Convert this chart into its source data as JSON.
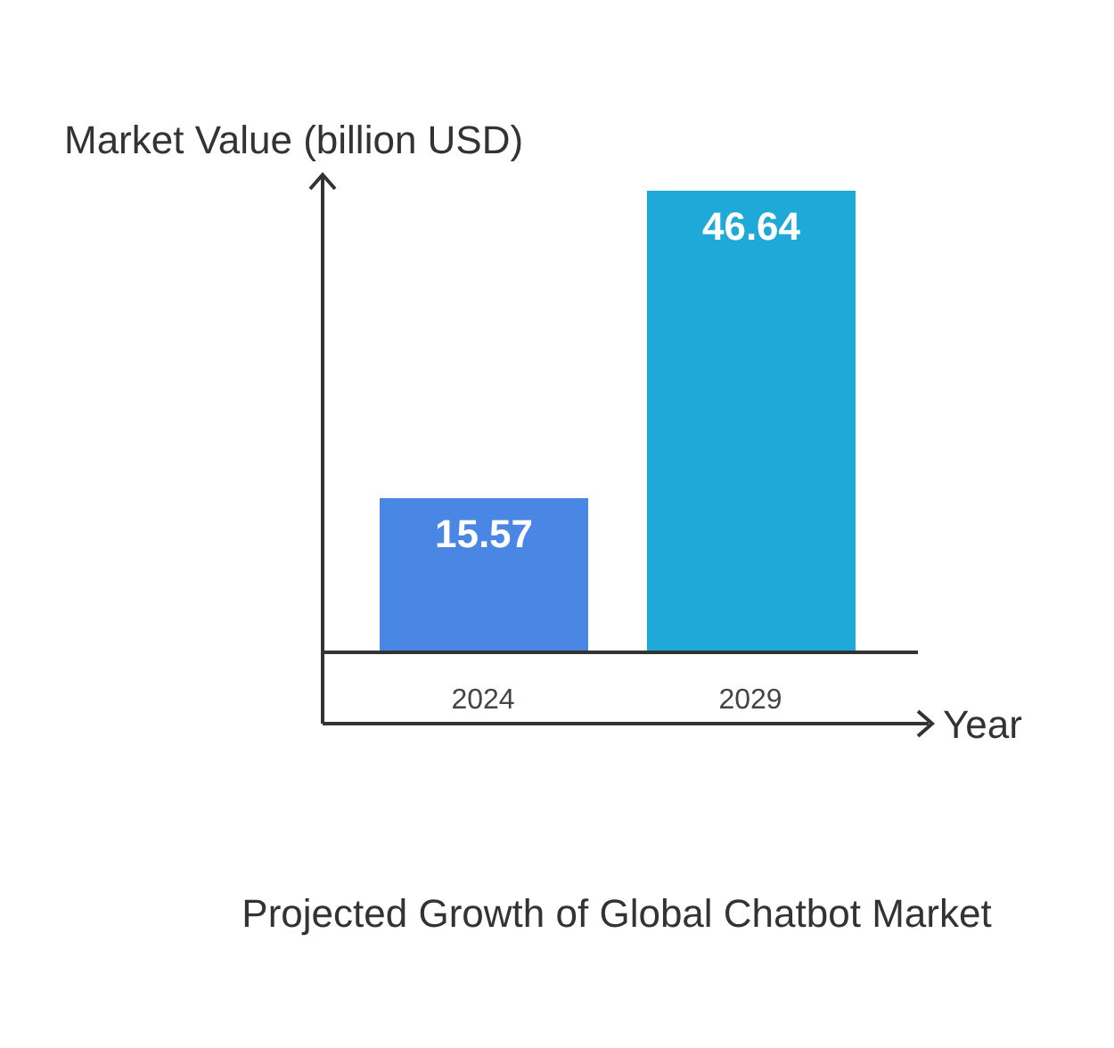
{
  "chart_data": {
    "type": "bar",
    "title": "Projected Growth of Global Chatbot Market",
    "xlabel": "Year",
    "ylabel": "Market Value (billion USD)",
    "categories": [
      "2024",
      "2029"
    ],
    "values": [
      15.57,
      46.64
    ],
    "colors": [
      "#4a86e3",
      "#1fa9d8"
    ],
    "data_labels": true,
    "grid": false,
    "legend": false
  }
}
